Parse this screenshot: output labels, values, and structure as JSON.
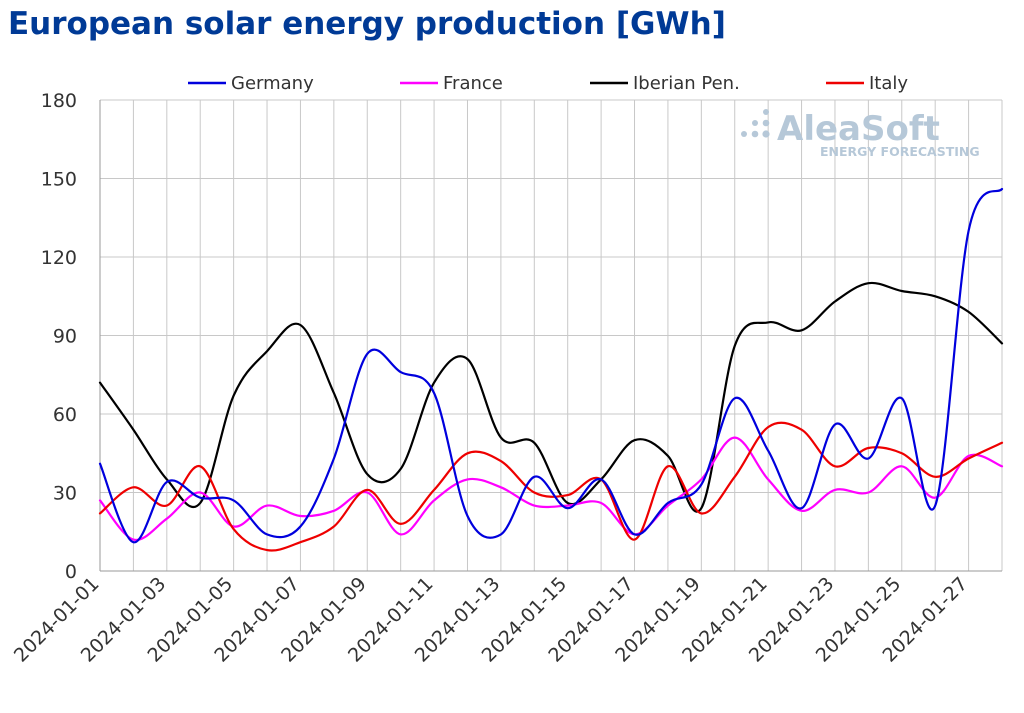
{
  "chart_data": {
    "type": "line",
    "title": "European solar energy production [GWh]",
    "xlabel": "",
    "ylabel": "",
    "ylim": [
      0,
      180
    ],
    "yticks": [
      0,
      30,
      60,
      90,
      120,
      150,
      180
    ],
    "x": [
      "2024-01-01",
      "2024-01-02",
      "2024-01-03",
      "2024-01-04",
      "2024-01-05",
      "2024-01-06",
      "2024-01-07",
      "2024-01-08",
      "2024-01-09",
      "2024-01-10",
      "2024-01-11",
      "2024-01-12",
      "2024-01-13",
      "2024-01-14",
      "2024-01-15",
      "2024-01-16",
      "2024-01-17",
      "2024-01-18",
      "2024-01-19",
      "2024-01-20",
      "2024-01-21",
      "2024-01-22",
      "2024-01-23",
      "2024-01-24",
      "2024-01-25",
      "2024-01-26",
      "2024-01-27",
      "2024-01-28"
    ],
    "xtick_labels": [
      "2024-01-01",
      "2024-01-03",
      "2024-01-05",
      "2024-01-07",
      "2024-01-09",
      "2024-01-11",
      "2024-01-13",
      "2024-01-15",
      "2024-01-17",
      "2024-01-19",
      "2024-01-21",
      "2024-01-23",
      "2024-01-25",
      "2024-01-27"
    ],
    "grid": true,
    "legend_position": "top",
    "series": [
      {
        "name": "Germany",
        "color": "#0000dd",
        "values": [
          41,
          11,
          34,
          28,
          27,
          14,
          17,
          43,
          83,
          76,
          68,
          21,
          14,
          36,
          24,
          35,
          14,
          26,
          33,
          66,
          46,
          24,
          56,
          43,
          66,
          25,
          130,
          146
        ]
      },
      {
        "name": "France",
        "color": "#ff00ff",
        "values": [
          27,
          12,
          20,
          30,
          17,
          25,
          21,
          23,
          30,
          14,
          27,
          35,
          32,
          25,
          25,
          26,
          14,
          25,
          35,
          51,
          35,
          23,
          31,
          30,
          40,
          28,
          44,
          40
        ]
      },
      {
        "name": "Iberian Pen.",
        "color": "#000000",
        "values": [
          72,
          54,
          35,
          26,
          67,
          84,
          94,
          68,
          37,
          39,
          72,
          81,
          51,
          49,
          26,
          35,
          50,
          44,
          24,
          86,
          95,
          92,
          103,
          110,
          107,
          105,
          99,
          87
        ]
      },
      {
        "name": "Italy",
        "color": "#ee0000",
        "values": [
          22,
          32,
          25,
          40,
          16,
          8,
          11,
          17,
          31,
          18,
          31,
          45,
          42,
          30,
          29,
          35,
          12,
          40,
          22,
          36,
          55,
          54,
          40,
          47,
          45,
          36,
          43,
          49
        ]
      }
    ]
  },
  "watermark": {
    "brand": "AleaSoft",
    "tagline": "ENERGY FORECASTING"
  }
}
